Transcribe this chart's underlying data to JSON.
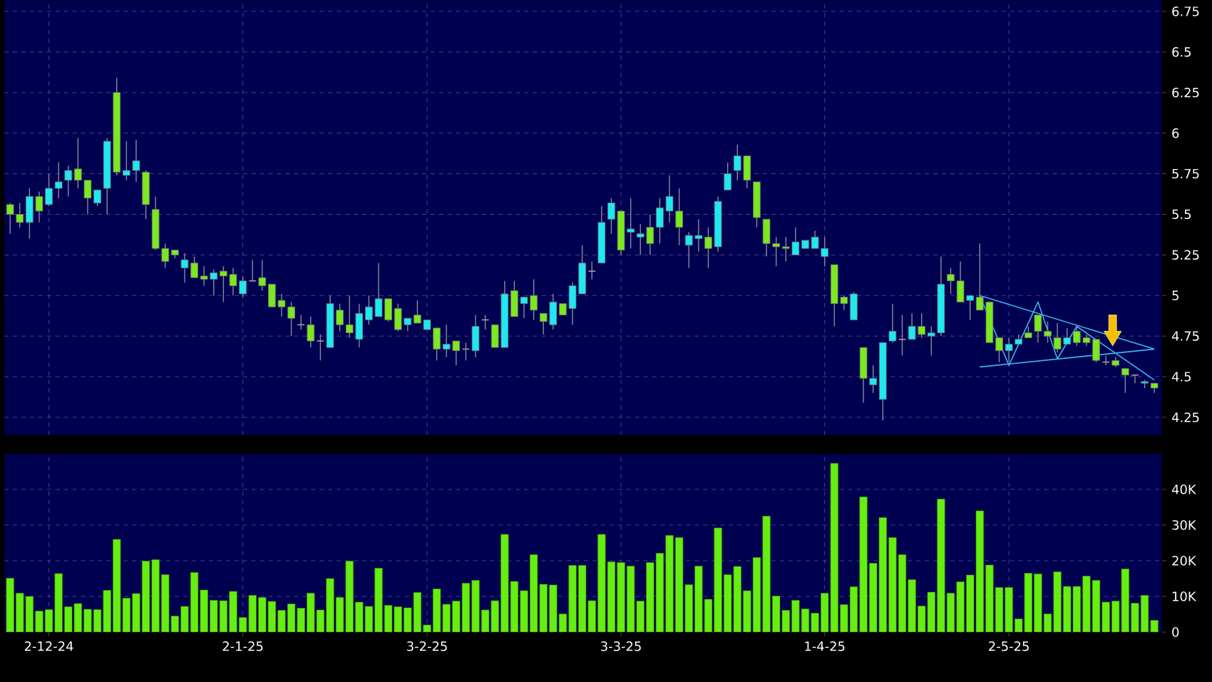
{
  "chart_data": [
    {
      "type": "candlestick",
      "grid": true,
      "tick_labels": "y",
      "ylim": [
        4.14,
        6.82
      ],
      "categories": [
        null,
        null,
        null,
        null,
        null,
        null,
        null,
        null,
        null,
        null,
        null,
        null,
        null,
        null,
        null,
        null,
        null,
        null,
        null,
        null,
        null,
        null,
        null,
        null,
        null,
        null,
        null,
        null,
        null,
        null,
        null,
        null,
        null,
        null,
        null,
        null,
        null,
        null,
        null,
        null,
        null,
        null,
        null,
        null,
        null,
        null,
        null,
        null,
        null,
        null,
        null,
        null,
        null,
        null,
        null,
        null,
        null,
        null,
        null,
        null,
        null,
        null,
        null,
        null,
        null,
        null,
        null,
        null,
        null,
        null,
        null,
        null,
        null,
        null,
        null,
        null,
        null,
        null,
        null,
        null,
        null,
        null,
        null,
        null,
        null,
        null,
        null,
        null,
        null,
        null,
        null,
        null,
        null,
        null,
        null,
        null,
        null,
        null,
        null,
        null,
        null,
        null,
        null,
        null,
        null,
        null,
        null,
        null,
        null,
        null,
        null,
        null,
        null,
        null,
        null,
        null,
        null,
        null,
        null
      ],
      "yticks": [
        4.25,
        4.5,
        4.75,
        5,
        5.25,
        5.5,
        5.75,
        6,
        6.25,
        6.5,
        6.75
      ],
      "ohlc": [
        [
          5.56,
          5.57,
          5.38,
          5.5
        ],
        [
          5.5,
          5.57,
          5.42,
          5.45
        ],
        [
          5.45,
          5.66,
          5.35,
          5.61
        ],
        [
          5.61,
          5.64,
          5.45,
          5.52
        ],
        [
          5.56,
          5.75,
          5.55,
          5.66
        ],
        [
          5.66,
          5.82,
          5.6,
          5.7
        ],
        [
          5.71,
          5.8,
          5.61,
          5.77
        ],
        [
          5.78,
          5.97,
          5.66,
          5.71
        ],
        [
          5.71,
          5.71,
          5.5,
          5.6
        ],
        [
          5.57,
          5.65,
          5.55,
          5.65
        ],
        [
          5.66,
          5.97,
          5.5,
          5.95
        ],
        [
          6.25,
          6.34,
          5.74,
          5.76
        ],
        [
          5.74,
          5.95,
          5.71,
          5.77
        ],
        [
          5.77,
          5.96,
          5.7,
          5.83
        ],
        [
          5.76,
          5.77,
          5.47,
          5.56
        ],
        [
          5.53,
          5.61,
          5.28,
          5.29
        ],
        [
          5.29,
          5.32,
          5.17,
          5.21
        ],
        [
          5.28,
          5.28,
          5.23,
          5.25
        ],
        [
          5.17,
          5.26,
          5.08,
          5.22
        ],
        [
          5.2,
          5.24,
          5.11,
          5.11
        ],
        [
          5.12,
          5.18,
          5.06,
          5.1
        ],
        [
          5.1,
          5.16,
          5.0,
          5.14
        ],
        [
          5.15,
          5.18,
          4.96,
          5.12
        ],
        [
          5.13,
          5.17,
          5.0,
          5.06
        ],
        [
          5.01,
          5.12,
          4.99,
          5.09
        ],
        [
          5.09,
          5.22,
          5.09,
          5.09
        ],
        [
          5.11,
          5.22,
          5.03,
          5.06
        ],
        [
          5.07,
          5.07,
          4.93,
          4.93
        ],
        [
          4.97,
          5.01,
          4.87,
          4.93
        ],
        [
          4.93,
          4.96,
          4.75,
          4.86
        ],
        [
          4.82,
          4.88,
          4.79,
          4.82
        ],
        [
          4.82,
          4.87,
          4.68,
          4.72
        ],
        [
          4.72,
          4.76,
          4.6,
          4.72
        ],
        [
          4.68,
          5.0,
          4.68,
          4.95
        ],
        [
          4.91,
          4.95,
          4.78,
          4.82
        ],
        [
          4.82,
          5.0,
          4.74,
          4.77
        ],
        [
          4.73,
          4.95,
          4.68,
          4.89
        ],
        [
          4.85,
          5.0,
          4.82,
          4.93
        ],
        [
          4.87,
          5.2,
          4.87,
          4.98
        ],
        [
          4.98,
          4.98,
          4.84,
          4.85
        ],
        [
          4.92,
          4.95,
          4.78,
          4.79
        ],
        [
          4.82,
          4.86,
          4.78,
          4.86
        ],
        [
          4.88,
          4.97,
          4.83,
          4.83
        ],
        [
          4.79,
          4.85,
          4.79,
          4.85
        ],
        [
          4.8,
          4.8,
          4.6,
          4.67
        ],
        [
          4.67,
          4.82,
          4.62,
          4.7
        ],
        [
          4.72,
          4.72,
          4.57,
          4.66
        ],
        [
          4.67,
          4.71,
          4.6,
          4.67
        ],
        [
          4.66,
          4.88,
          4.62,
          4.81
        ],
        [
          4.85,
          4.88,
          4.79,
          4.85
        ],
        [
          4.82,
          4.82,
          4.68,
          4.68
        ],
        [
          4.68,
          5.09,
          4.68,
          5.01
        ],
        [
          5.03,
          5.09,
          4.87,
          4.87
        ],
        [
          4.95,
          4.99,
          4.86,
          4.99
        ],
        [
          5.0,
          5.1,
          4.85,
          4.91
        ],
        [
          4.89,
          4.89,
          4.76,
          4.84
        ],
        [
          4.82,
          5.01,
          4.79,
          4.96
        ],
        [
          4.95,
          4.95,
          4.88,
          4.88
        ],
        [
          4.92,
          5.08,
          4.82,
          5.06
        ],
        [
          5.01,
          5.31,
          5.01,
          5.2
        ],
        [
          5.15,
          5.21,
          5.1,
          5.15
        ],
        [
          5.2,
          5.55,
          5.2,
          5.45
        ],
        [
          5.47,
          5.6,
          5.38,
          5.57
        ],
        [
          5.52,
          5.52,
          5.25,
          5.28
        ],
        [
          5.39,
          5.6,
          5.29,
          5.41
        ],
        [
          5.36,
          5.44,
          5.25,
          5.38
        ],
        [
          5.42,
          5.5,
          5.25,
          5.32
        ],
        [
          5.42,
          5.6,
          5.32,
          5.54
        ],
        [
          5.52,
          5.74,
          5.45,
          5.61
        ],
        [
          5.52,
          5.66,
          5.31,
          5.42
        ],
        [
          5.31,
          5.39,
          5.17,
          5.37
        ],
        [
          5.35,
          5.47,
          5.27,
          5.37
        ],
        [
          5.36,
          5.42,
          5.17,
          5.29
        ],
        [
          5.3,
          5.61,
          5.27,
          5.58
        ],
        [
          5.65,
          5.82,
          5.65,
          5.75
        ],
        [
          5.77,
          5.93,
          5.71,
          5.86
        ],
        [
          5.86,
          5.86,
          5.66,
          5.71
        ],
        [
          5.7,
          5.7,
          5.42,
          5.48
        ],
        [
          5.47,
          5.47,
          5.24,
          5.32
        ],
        [
          5.32,
          5.36,
          5.18,
          5.3
        ],
        [
          5.3,
          5.36,
          5.21,
          5.29
        ],
        [
          5.25,
          5.42,
          5.25,
          5.33
        ],
        [
          5.29,
          5.34,
          5.29,
          5.34
        ],
        [
          5.29,
          5.4,
          5.29,
          5.36
        ],
        [
          5.24,
          5.36,
          5.18,
          5.29
        ],
        [
          5.19,
          5.19,
          4.81,
          4.95
        ],
        [
          4.99,
          5.0,
          4.91,
          4.95
        ],
        [
          4.85,
          5.02,
          4.85,
          5.01
        ],
        [
          4.68,
          4.68,
          4.34,
          4.49
        ],
        [
          4.45,
          4.57,
          4.4,
          4.49
        ],
        [
          4.36,
          4.71,
          4.23,
          4.71
        ],
        [
          4.72,
          4.95,
          4.71,
          4.78
        ],
        [
          4.73,
          4.88,
          4.63,
          4.73
        ],
        [
          4.73,
          4.89,
          4.73,
          4.81
        ],
        [
          4.81,
          4.89,
          4.74,
          4.76
        ],
        [
          4.75,
          4.81,
          4.63,
          4.77
        ],
        [
          4.77,
          5.24,
          4.75,
          5.07
        ],
        [
          5.13,
          5.17,
          5.01,
          5.09
        ],
        [
          5.09,
          5.21,
          4.96,
          4.96
        ],
        [
          4.97,
          5.0,
          4.85,
          5.0
        ],
        [
          4.99,
          5.32,
          4.91,
          4.91
        ],
        [
          4.96,
          4.96,
          4.71,
          4.71
        ],
        [
          4.74,
          4.74,
          4.59,
          4.66
        ],
        [
          4.66,
          4.74,
          4.59,
          4.7
        ],
        [
          4.7,
          4.76,
          4.7,
          4.73
        ],
        [
          4.77,
          4.81,
          4.74,
          4.74
        ],
        [
          4.88,
          4.88,
          4.71,
          4.78
        ],
        [
          4.78,
          4.84,
          4.71,
          4.75
        ],
        [
          4.74,
          4.83,
          4.65,
          4.67
        ],
        [
          4.7,
          4.8,
          4.7,
          4.74
        ],
        [
          4.78,
          4.82,
          4.69,
          4.71
        ],
        [
          4.74,
          4.76,
          4.69,
          4.71
        ],
        [
          4.73,
          4.73,
          4.59,
          4.6
        ],
        [
          4.59,
          4.63,
          4.57,
          4.59
        ],
        [
          4.6,
          4.62,
          4.56,
          4.57
        ],
        [
          4.55,
          4.55,
          4.4,
          4.51
        ],
        [
          4.51,
          4.51,
          4.46,
          4.51
        ],
        [
          4.46,
          4.48,
          4.43,
          4.47
        ],
        [
          4.46,
          4.46,
          4.4,
          4.43
        ]
      ],
      "colors": [
        "#7ce820",
        "#7ce820",
        "#20e8f0",
        "#7ce820",
        "#20e8f0",
        "#20e8f0",
        "#20e8f0",
        "#7ce820",
        "#7ce820",
        "#20e8f0",
        "#20e8f0",
        "#7ce820",
        "#20e8f0",
        "#20e8f0",
        "#7ce820",
        "#7ce820",
        "#7ce820",
        "#7ce820",
        "#20e8f0",
        "#7ce820",
        "#7ce820",
        "#20e8f0",
        "#7ce820",
        "#7ce820",
        "#20e8f0",
        "#a0a0a0",
        "#7ce820",
        "#7ce820",
        "#7ce820",
        "#7ce820",
        "#a0a0a0",
        "#7ce820",
        "#a0a0a0",
        "#20e8f0",
        "#7ce820",
        "#7ce820",
        "#20e8f0",
        "#20e8f0",
        "#20e8f0",
        "#7ce820",
        "#7ce820",
        "#20e8f0",
        "#7ce820",
        "#20e8f0",
        "#7ce820",
        "#20e8f0",
        "#7ce820",
        "#a0a0a0",
        "#20e8f0",
        "#a0a0a0",
        "#7ce820",
        "#20e8f0",
        "#7ce820",
        "#20e8f0",
        "#7ce820",
        "#7ce820",
        "#20e8f0",
        "#7ce820",
        "#20e8f0",
        "#20e8f0",
        "#a0a0a0",
        "#20e8f0",
        "#20e8f0",
        "#7ce820",
        "#20e8f0",
        "#20e8f0",
        "#7ce820",
        "#20e8f0",
        "#20e8f0",
        "#7ce820",
        "#20e8f0",
        "#20e8f0",
        "#7ce820",
        "#20e8f0",
        "#20e8f0",
        "#20e8f0",
        "#7ce820",
        "#7ce820",
        "#7ce820",
        "#7ce820",
        "#7ce820",
        "#20e8f0",
        "#20e8f0",
        "#20e8f0",
        "#20e8f0",
        "#7ce820",
        "#7ce820",
        "#20e8f0",
        "#7ce820",
        "#20e8f0",
        "#20e8f0",
        "#20e8f0",
        "#a0a0a0",
        "#20e8f0",
        "#7ce820",
        "#20e8f0",
        "#20e8f0",
        "#7ce820",
        "#7ce820",
        "#20e8f0",
        "#7ce820",
        "#7ce820",
        "#7ce820",
        "#20e8f0",
        "#20e8f0",
        "#7ce820",
        "#7ce820",
        "#7ce820",
        "#7ce820",
        "#20e8f0",
        "#7ce820",
        "#7ce820",
        "#7ce820",
        "#a0a0a0",
        "#7ce820",
        "#7ce820",
        "#a0a0a0",
        "#20e8f0",
        "#7ce820"
      ],
      "series": [
        {
          "type": "line",
          "color": "#3ab4f0",
          "values": [
            null,
            null,
            null,
            null,
            null,
            null,
            null,
            null,
            null,
            null,
            null,
            null,
            null,
            null,
            null,
            null,
            null,
            null,
            null,
            null,
            null,
            null,
            null,
            null,
            null,
            null,
            null,
            null,
            null,
            null,
            null,
            null,
            null,
            null,
            null,
            null,
            null,
            null,
            null,
            null,
            null,
            null,
            null,
            null,
            null,
            null,
            null,
            null,
            null,
            null,
            null,
            null,
            null,
            null,
            null,
            null,
            null,
            null,
            null,
            null,
            null,
            null,
            null,
            null,
            null,
            null,
            null,
            null,
            null,
            null,
            null,
            null,
            null,
            null,
            null,
            null,
            null,
            null,
            null,
            null,
            null,
            null,
            null,
            null,
            null,
            null,
            null,
            null,
            null,
            null,
            null,
            null,
            null,
            null,
            null,
            null,
            null,
            null,
            null,
            null,
            5.0,
            null,
            null,
            null,
            null,
            null,
            null,
            null,
            null,
            null,
            null,
            null,
            null,
            null,
            null,
            null,
            null,
            null,
            4.67
          ]
        },
        {
          "type": "line",
          "color": "#3ab4f0",
          "values": [
            null,
            null,
            null,
            null,
            null,
            null,
            null,
            null,
            null,
            null,
            null,
            null,
            null,
            null,
            null,
            null,
            null,
            null,
            null,
            null,
            null,
            null,
            null,
            null,
            null,
            null,
            null,
            null,
            null,
            null,
            null,
            null,
            null,
            null,
            null,
            null,
            null,
            null,
            null,
            null,
            null,
            null,
            null,
            null,
            null,
            null,
            null,
            null,
            null,
            null,
            null,
            null,
            null,
            null,
            null,
            null,
            null,
            null,
            null,
            null,
            null,
            null,
            null,
            null,
            null,
            null,
            null,
            null,
            null,
            null,
            null,
            null,
            null,
            null,
            null,
            null,
            null,
            null,
            null,
            null,
            null,
            null,
            null,
            null,
            null,
            null,
            null,
            null,
            null,
            null,
            null,
            null,
            null,
            null,
            null,
            null,
            null,
            null,
            null,
            null,
            4.56,
            null,
            null,
            null,
            null,
            null,
            null,
            null,
            null,
            null,
            null,
            null,
            null,
            null,
            null,
            null,
            null,
            null,
            4.67
          ]
        },
        {
          "type": "line",
          "color": "#3ab4f0",
          "values": [
            null,
            null,
            null,
            null,
            null,
            null,
            null,
            null,
            null,
            null,
            null,
            null,
            null,
            null,
            null,
            null,
            null,
            null,
            null,
            null,
            null,
            null,
            null,
            null,
            null,
            null,
            null,
            null,
            null,
            null,
            null,
            null,
            null,
            null,
            null,
            null,
            null,
            null,
            null,
            null,
            null,
            null,
            null,
            null,
            null,
            null,
            null,
            null,
            null,
            null,
            null,
            null,
            null,
            null,
            null,
            null,
            null,
            null,
            null,
            null,
            null,
            null,
            null,
            null,
            null,
            null,
            null,
            null,
            null,
            null,
            null,
            null,
            null,
            null,
            null,
            null,
            null,
            null,
            null,
            null,
            null,
            null,
            null,
            null,
            null,
            null,
            null,
            null,
            null,
            null,
            null,
            null,
            null,
            null,
            null,
            null,
            null,
            null,
            null,
            null,
            5.0,
            null,
            null,
            4.57,
            null,
            null,
            4.96,
            null,
            4.61,
            null,
            4.81,
            null,
            null,
            null,
            null,
            null,
            null,
            null,
            null
          ]
        },
        {
          "type": "line",
          "color": "#3ab4f0",
          "values": [
            null,
            null,
            null,
            null,
            null,
            null,
            null,
            null,
            null,
            null,
            null,
            null,
            null,
            null,
            null,
            null,
            null,
            null,
            null,
            null,
            null,
            null,
            null,
            null,
            null,
            null,
            null,
            null,
            null,
            null,
            null,
            null,
            null,
            null,
            null,
            null,
            null,
            null,
            null,
            null,
            null,
            null,
            null,
            null,
            null,
            null,
            null,
            null,
            null,
            null,
            null,
            null,
            null,
            null,
            null,
            null,
            null,
            null,
            null,
            null,
            null,
            null,
            null,
            null,
            null,
            null,
            null,
            null,
            null,
            null,
            null,
            null,
            null,
            null,
            null,
            null,
            null,
            null,
            null,
            null,
            null,
            null,
            null,
            null,
            null,
            null,
            null,
            null,
            null,
            null,
            null,
            null,
            null,
            null,
            null,
            null,
            null,
            null,
            null,
            null,
            null,
            null,
            null,
            null,
            null,
            null,
            null,
            null,
            null,
            null,
            4.81,
            null,
            null,
            null,
            null,
            null,
            null,
            null,
            4.48
          ]
        }
      ]
    },
    {
      "type": "bar",
      "grid": true,
      "color": "#66ee11",
      "ylim": [
        0,
        50000
      ],
      "categories": [
        null,
        null,
        null,
        null,
        "2-12-24",
        null,
        null,
        null,
        null,
        null,
        null,
        null,
        null,
        null,
        null,
        null,
        null,
        null,
        null,
        null,
        null,
        null,
        null,
        null,
        "2-1-25",
        null,
        null,
        null,
        null,
        null,
        null,
        null,
        null,
        null,
        null,
        null,
        null,
        null,
        null,
        null,
        null,
        null,
        null,
        "3-2-25",
        null,
        null,
        null,
        null,
        null,
        null,
        null,
        null,
        null,
        null,
        null,
        null,
        null,
        null,
        null,
        null,
        null,
        null,
        null,
        "3-3-25",
        null,
        null,
        null,
        null,
        null,
        null,
        null,
        null,
        null,
        null,
        null,
        null,
        null,
        null,
        null,
        null,
        null,
        null,
        null,
        null,
        "1-4-25",
        null,
        null,
        null,
        null,
        null,
        null,
        null,
        null,
        null,
        null,
        null,
        null,
        null,
        null,
        null,
        null,
        null,
        null,
        "2-5-25",
        null,
        null,
        null,
        null,
        null,
        null,
        null,
        null,
        null,
        null,
        null,
        null,
        null,
        null,
        null
      ],
      "yticks": [
        0,
        {
          "value": 10000,
          "label": "10K"
        },
        {
          "value": 20000,
          "label": "20K"
        },
        {
          "value": 30000,
          "label": "30K"
        },
        {
          "value": 40000,
          "label": "40K"
        }
      ],
      "values": [
        15100,
        10900,
        10000,
        5900,
        6300,
        16400,
        7100,
        8000,
        6400,
        6300,
        11700,
        26000,
        9500,
        10800,
        19900,
        20300,
        16100,
        4500,
        7200,
        16700,
        11800,
        8900,
        8800,
        11400,
        4100,
        10300,
        9700,
        8600,
        6100,
        7900,
        6700,
        10900,
        6200,
        15000,
        9700,
        19900,
        8400,
        7200,
        17900,
        7500,
        7100,
        6800,
        11100,
        2000,
        12100,
        7800,
        8700,
        13700,
        14500,
        6200,
        8800,
        27400,
        14200,
        11600,
        21700,
        13400,
        13200,
        5100,
        18700,
        18700,
        8800,
        27400,
        19700,
        19500,
        18500,
        8700,
        19500,
        22100,
        27100,
        26500,
        13300,
        18500,
        9200,
        29200,
        16100,
        18400,
        11600,
        20900,
        32500,
        10100,
        6100,
        8900,
        6500,
        5300,
        10900,
        47300,
        7700,
        12700,
        37900,
        19300,
        32100,
        26500,
        21700,
        14700,
        7300,
        11200,
        37300,
        10900,
        14100,
        16000,
        34000,
        18800,
        12500,
        12500,
        3700,
        16500,
        16300,
        5100,
        16900,
        12800,
        12800,
        15700,
        14500,
        8400,
        8700,
        17700,
        8100,
        10300,
        3300
      ]
    }
  ]
}
